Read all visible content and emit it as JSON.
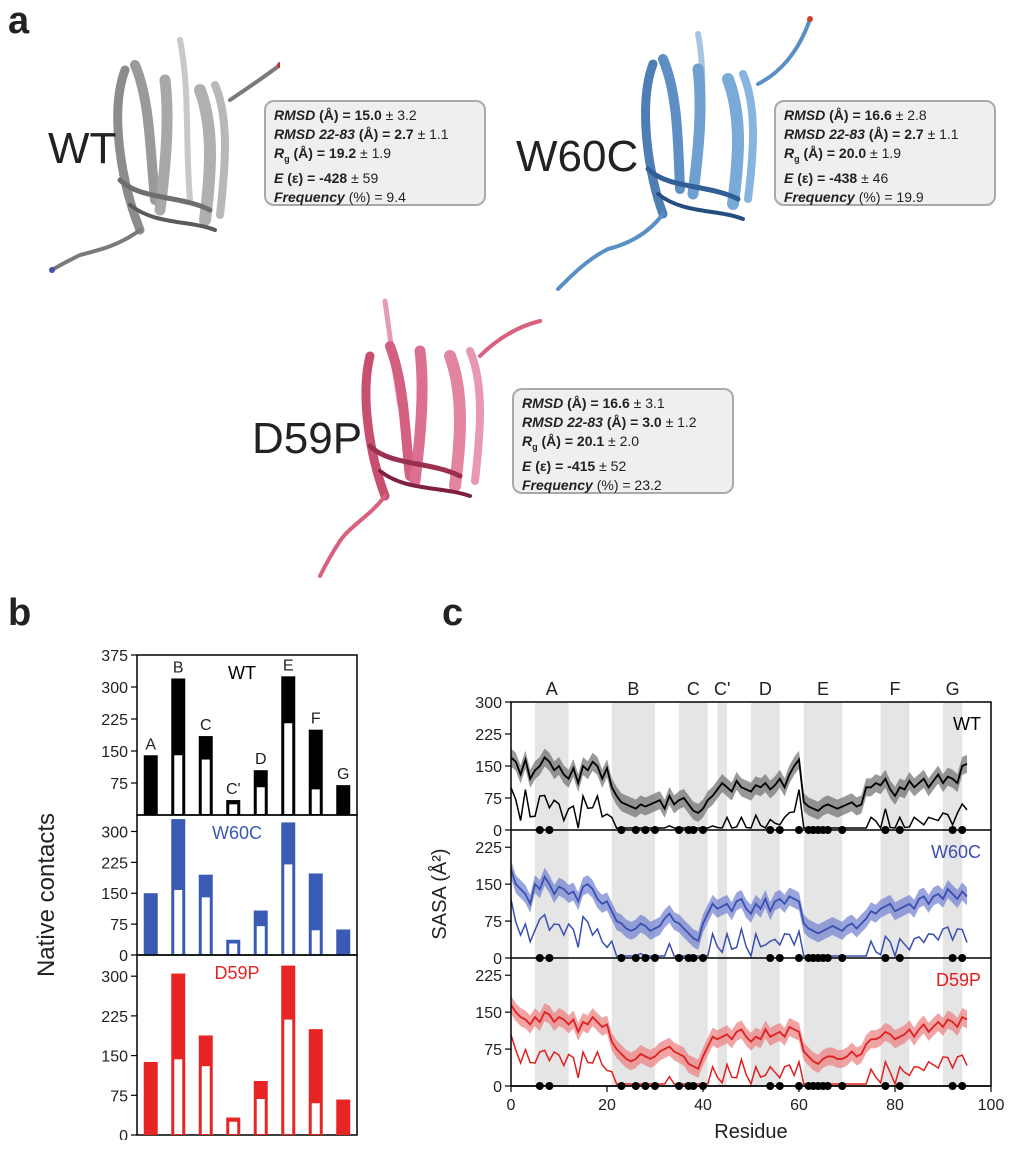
{
  "panels": {
    "a": "a",
    "b": "b",
    "c": "c"
  },
  "structures": [
    {
      "label": "WT",
      "color": "#808080",
      "stats": {
        "rmsd_label": "RMSD",
        "rmsd_unit": "(Å) =",
        "rmsd_value": "15.0",
        "rmsd_sd": "± 3.2",
        "rmsd2283_label": "RMSD 22-83",
        "rmsd2283_unit": "(Å) =",
        "rmsd2283_value": "2.7",
        "rmsd2283_sd": "± 1.1",
        "rg_label": "R",
        "rg_sub": "g",
        "rg_unit": "(Å) =",
        "rg_value": "19.2",
        "rg_sd": "± 1.9",
        "e_label": "E",
        "e_unit": "(ε) =",
        "e_value": "-428",
        "e_sd": "± 59",
        "freq_label": "Frequency",
        "freq_unit": "(%) = 9.4"
      }
    },
    {
      "label": "W60C",
      "color": "#5a8fc5",
      "stats": {
        "rmsd_label": "RMSD",
        "rmsd_unit": "(Å) =",
        "rmsd_value": "16.6",
        "rmsd_sd": "± 2.8",
        "rmsd2283_label": "RMSD 22-83",
        "rmsd2283_unit": "(Å) =",
        "rmsd2283_value": "2.7",
        "rmsd2283_sd": "± 1.1",
        "rg_label": "R",
        "rg_sub": "g",
        "rg_unit": "(Å) =",
        "rg_value": "20.0",
        "rg_sd": "± 1.9",
        "e_label": "E",
        "e_unit": "(ε) =",
        "e_value": "-438",
        "e_sd": "± 46",
        "freq_label": "Frequency",
        "freq_unit": "(%) = 19.9"
      }
    },
    {
      "label": "D59P",
      "color": "#d9607f",
      "stats": {
        "rmsd_label": "RMSD",
        "rmsd_unit": "(Å) =",
        "rmsd_value": "16.6",
        "rmsd_sd": "± 3.1",
        "rmsd2283_label": "RMSD 22-83",
        "rmsd2283_unit": "(Å) =",
        "rmsd2283_value": "3.0",
        "rmsd2283_sd": "± 1.2",
        "rg_label": "R",
        "rg_sub": "g",
        "rg_unit": "(Å) =",
        "rg_value": "20.1",
        "rg_sd": "± 2.0",
        "e_label": "E",
        "e_unit": "(ε) =",
        "e_value": "-415",
        "e_sd": "± 52",
        "freq_label": "Frequency",
        "freq_unit": "(%) = 23.2"
      }
    }
  ],
  "chart_data": [
    {
      "type": "bar",
      "ylabel": "Native contacts",
      "categories": [
        "A",
        "B",
        "C",
        "C'",
        "D",
        "E",
        "F",
        "G"
      ],
      "yticks_top": [
        75,
        150,
        225,
        300,
        375
      ],
      "yticks": [
        0,
        75,
        150,
        225,
        300
      ],
      "ylim_top": [
        0,
        375
      ],
      "ylim": [
        0,
        340
      ],
      "panels": [
        {
          "name": "WT",
          "color": "#000000",
          "total": [
            140,
            320,
            185,
            35,
            105,
            325,
            200,
            70
          ],
          "inner": [
            0,
            140,
            130,
            25,
            65,
            215,
            60,
            0
          ]
        },
        {
          "name": "W60C",
          "color": "#3a5bb5",
          "total": [
            150,
            330,
            195,
            37,
            108,
            322,
            198,
            62
          ],
          "inner": [
            0,
            158,
            140,
            28,
            70,
            220,
            60,
            0
          ]
        },
        {
          "name": "D59P",
          "color": "#e82525",
          "total": [
            138,
            305,
            188,
            33,
            102,
            320,
            200,
            67
          ],
          "inner": [
            0,
            143,
            130,
            25,
            68,
            218,
            60,
            0
          ]
        }
      ]
    },
    {
      "type": "line",
      "xlabel": "Residue",
      "ylabel": "SASA (Å²)",
      "xlim": [
        0,
        100
      ],
      "xticks": [
        0,
        20,
        40,
        60,
        80,
        100
      ],
      "yticks_top": [
        0,
        75,
        150,
        225,
        300
      ],
      "yticks": [
        0,
        75,
        150,
        225
      ],
      "ylim_top": [
        0,
        300
      ],
      "ylim": [
        0,
        260
      ],
      "strands": [
        {
          "label": "A",
          "start": 5,
          "end": 12
        },
        {
          "label": "B",
          "start": 21,
          "end": 30
        },
        {
          "label": "C",
          "start": 35,
          "end": 41
        },
        {
          "label": "C'",
          "start": 43,
          "end": 45
        },
        {
          "label": "D",
          "start": 50,
          "end": 56
        },
        {
          "label": "E",
          "start": 61,
          "end": 69
        },
        {
          "label": "F",
          "start": 77,
          "end": 83
        },
        {
          "label": "G",
          "start": 90,
          "end": 94
        }
      ],
      "contact_residues": [
        6,
        8,
        23,
        26,
        28,
        30,
        35,
        37,
        38,
        40,
        54,
        56,
        60,
        62,
        63,
        64,
        65,
        66,
        69,
        78,
        81,
        92,
        94
      ],
      "panels": [
        {
          "name": "WT",
          "color": "#000000",
          "band": "#6e6e6e",
          "sasa": [
            170,
            160,
            130,
            165,
            120,
            140,
            150,
            170,
            160,
            140,
            150,
            130,
            120,
            145,
            110,
            150,
            140,
            160,
            150,
            120,
            145,
            100,
            80,
            65,
            60,
            55,
            50,
            60,
            55,
            60,
            65,
            70,
            50,
            80,
            60,
            70,
            75,
            60,
            45,
            40,
            50,
            70,
            80,
            95,
            110,
            100,
            90,
            115,
            100,
            95,
            90,
            105,
            100,
            110,
            95,
            105,
            120,
            100,
            130,
            150,
            165,
            65,
            55,
            50,
            45,
            55,
            60,
            55,
            50,
            55,
            60,
            65,
            55,
            60,
            100,
            100,
            110,
            105,
            120,
            95,
            80,
            100,
            95,
            115,
            100,
            110,
            120,
            100,
            115,
            130,
            110,
            125,
            120,
            110,
            150,
            155
          ]
        },
        {
          "name": "W60C",
          "color": "#3a4fb0",
          "band": "#6f7fcf",
          "sasa": [
            180,
            150,
            140,
            130,
            110,
            150,
            140,
            165,
            150,
            130,
            145,
            140,
            130,
            135,
            115,
            145,
            150,
            140,
            120,
            110,
            115,
            95,
            75,
            70,
            60,
            55,
            60,
            70,
            65,
            55,
            60,
            65,
            80,
            90,
            75,
            70,
            60,
            50,
            40,
            35,
            70,
            90,
            110,
            100,
            105,
            110,
            95,
            115,
            120,
            100,
            90,
            110,
            100,
            120,
            95,
            115,
            120,
            110,
            125,
            120,
            115,
            70,
            60,
            55,
            50,
            55,
            60,
            65,
            60,
            55,
            65,
            70,
            60,
            70,
            80,
            95,
            90,
            100,
            105,
            110,
            95,
            100,
            105,
            110,
            100,
            120,
            125,
            110,
            125,
            130,
            120,
            140,
            130,
            120,
            135,
            125
          ]
        },
        {
          "name": "D59P",
          "color": "#e02020",
          "band": "#ec7d7d",
          "sasa": [
            165,
            150,
            140,
            135,
            125,
            140,
            130,
            150,
            145,
            130,
            140,
            135,
            125,
            135,
            110,
            130,
            125,
            140,
            130,
            120,
            125,
            90,
            75,
            65,
            55,
            50,
            55,
            65,
            60,
            55,
            60,
            70,
            75,
            80,
            70,
            65,
            60,
            45,
            40,
            35,
            60,
            80,
            100,
            95,
            100,
            105,
            95,
            110,
            115,
            100,
            90,
            100,
            95,
            115,
            100,
            105,
            110,
            100,
            120,
            115,
            110,
            70,
            60,
            50,
            45,
            55,
            60,
            60,
            55,
            55,
            60,
            70,
            60,
            65,
            85,
            95,
            95,
            100,
            110,
            105,
            95,
            100,
            105,
            115,
            100,
            115,
            125,
            110,
            120,
            130,
            120,
            135,
            130,
            120,
            140,
            135
          ]
        }
      ]
    }
  ]
}
